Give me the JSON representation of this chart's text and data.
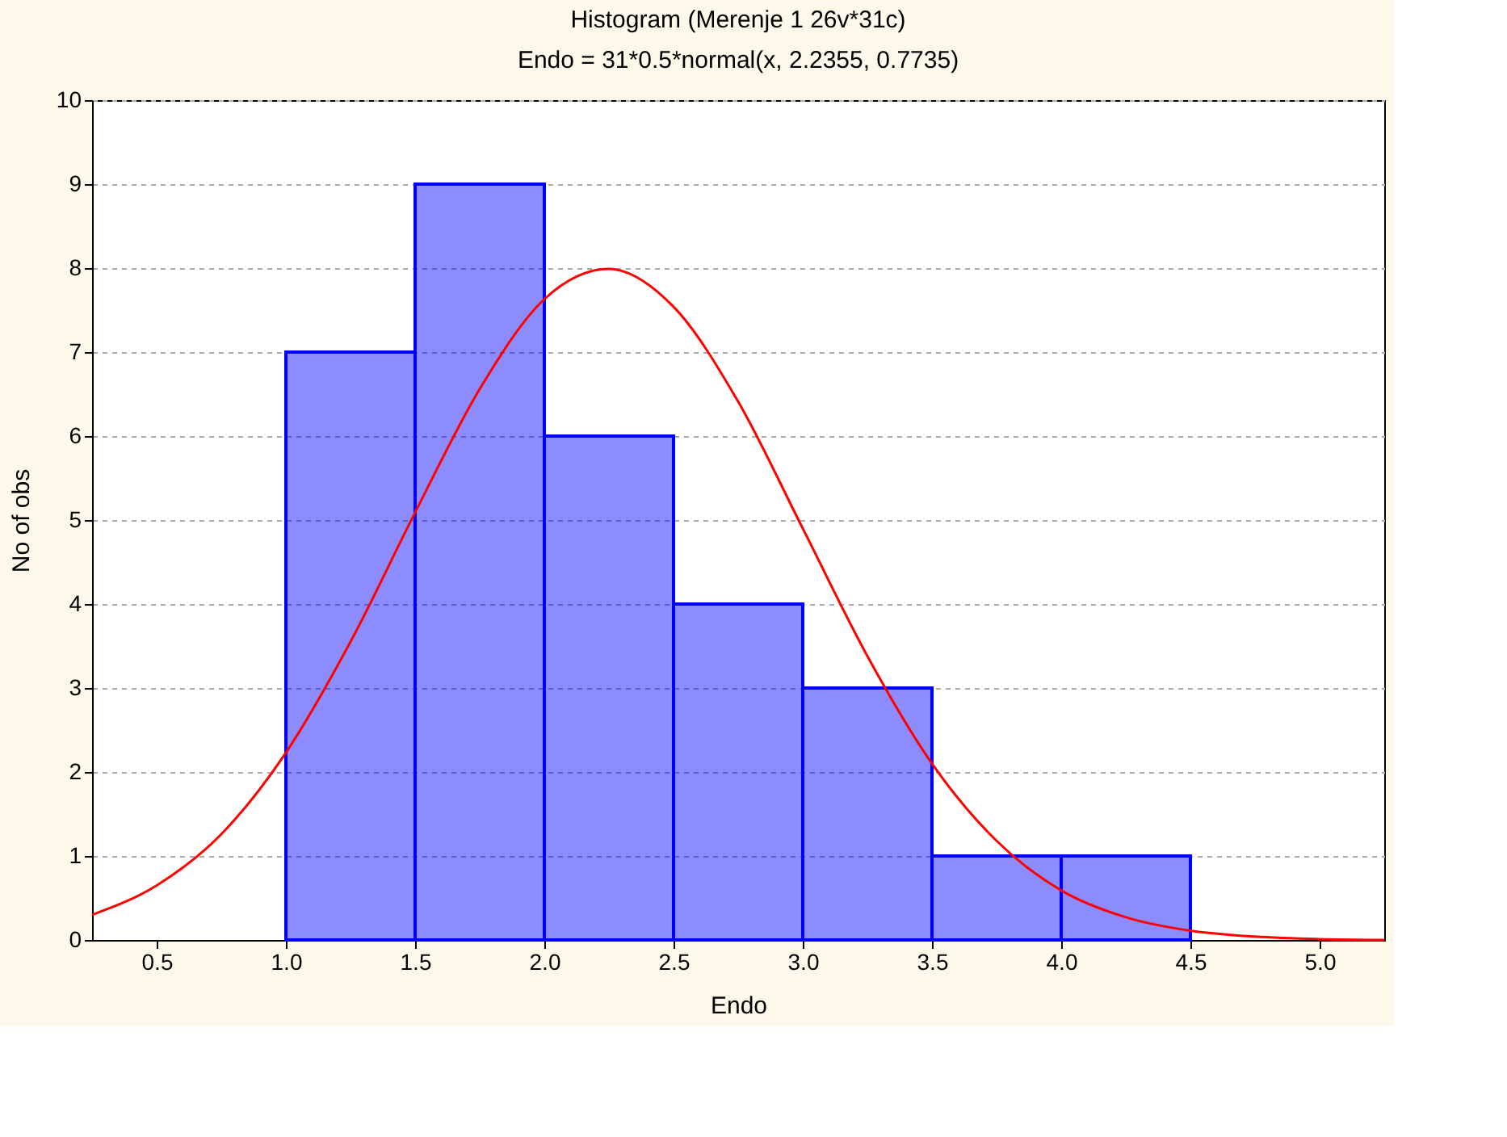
{
  "chart_data": {
    "type": "histogram",
    "title": "Histogram (Merenje 1 26v*31c)",
    "subtitle": "Endo = 31*0.5*normal(x, 2.2355, 0.7735)",
    "xlabel": "Endo",
    "ylabel": "No of obs",
    "bins": [
      1.0,
      1.5,
      2.0,
      2.5,
      3.0,
      3.5,
      4.0,
      4.5
    ],
    "values": [
      7,
      9,
      6,
      4,
      3,
      1,
      1
    ],
    "color": "#0000ff",
    "series": [
      {
        "type": "line",
        "color": "#ff0000",
        "x": [
          0.25,
          0.5,
          0.75,
          1.0,
          1.25,
          1.5,
          1.75,
          2.0,
          2.25,
          2.5,
          2.75,
          3.0,
          3.25,
          3.5,
          3.75,
          4.0,
          4.25,
          4.5,
          4.75,
          5.0,
          5.25
        ],
        "values": [
          0.3,
          0.65,
          1.26,
          2.23,
          3.55,
          5.09,
          6.56,
          7.63,
          7.99,
          7.54,
          6.41,
          4.9,
          3.38,
          2.1,
          1.18,
          0.59,
          0.27,
          0.11,
          0.04,
          0.01,
          0.0
        ]
      }
    ],
    "xlim": [
      0.25,
      5.25
    ],
    "xticks": [
      0.5,
      {
        "value": 1,
        "label": "1.0"
      },
      1.5,
      {
        "value": 2,
        "label": "2.0"
      },
      2.5,
      {
        "value": 3,
        "label": "3.0"
      },
      3.5,
      {
        "value": 4,
        "label": "4.0"
      },
      4.5,
      {
        "value": 5,
        "label": "5.0"
      }
    ],
    "ylim": [
      0,
      10
    ],
    "yticks": [
      0,
      1,
      2,
      3,
      4,
      5,
      6,
      7,
      8,
      9,
      10
    ],
    "grid": "y"
  }
}
